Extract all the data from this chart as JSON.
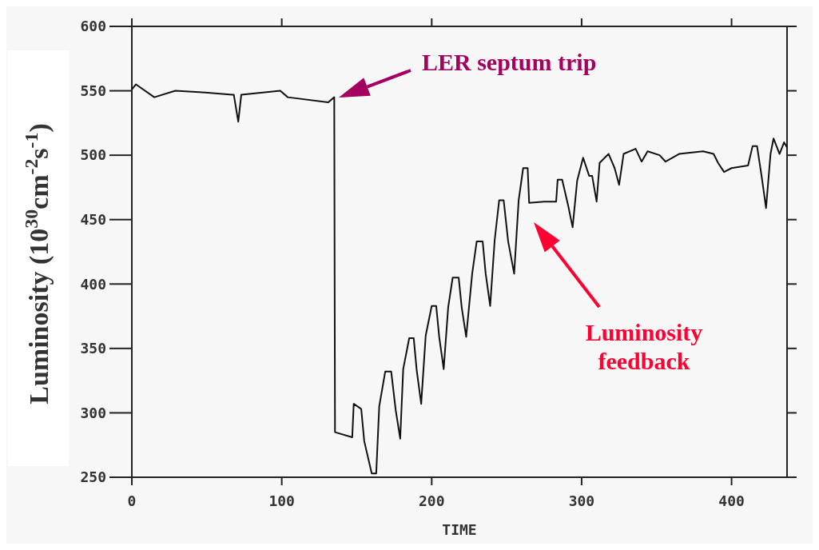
{
  "chart_data": {
    "type": "line",
    "xlabel": "TIME",
    "ylabel": "Luminosity (10$^{30}$cm$^{-2}$s$^{-1}$)",
    "x": [
      0,
      2.7,
      15,
      29,
      45,
      67,
      68,
      71,
      73,
      99,
      104,
      131,
      135,
      135.5,
      147,
      148,
      153,
      155,
      160,
      163,
      165,
      169,
      173,
      176,
      179,
      181,
      185,
      188,
      190,
      193,
      196,
      200,
      203,
      205,
      208,
      211,
      214,
      218,
      220,
      223,
      227,
      230,
      234,
      236,
      239,
      242,
      245,
      248,
      251,
      255,
      258,
      261,
      264,
      265,
      275,
      283,
      284,
      287,
      291,
      294,
      297,
      301,
      305,
      307,
      310,
      312,
      318,
      322,
      325,
      328,
      336,
      340,
      344,
      352,
      356,
      365,
      381,
      388,
      391,
      395,
      400,
      411,
      414,
      417,
      420,
      423,
      426,
      428,
      432,
      435,
      437
    ],
    "series": [
      {
        "color": "#111111",
        "values": [
          551,
          555,
          545,
          550,
          549,
          547,
          547,
          526,
          547,
          550,
          545,
          541,
          545,
          285,
          281,
          307,
          303,
          278,
          253,
          253,
          305,
          332,
          332,
          302,
          280,
          334,
          358,
          358,
          333,
          307,
          360,
          383,
          383,
          359,
          334,
          382,
          405,
          405,
          382,
          359,
          408,
          433,
          433,
          408,
          383,
          434,
          465,
          465,
          433,
          408,
          465,
          490,
          490,
          463,
          464,
          464,
          481,
          481,
          461,
          444,
          480,
          498,
          484,
          484,
          464,
          494,
          501,
          490,
          477,
          501,
          505,
          495,
          503,
          500,
          495,
          501,
          503,
          501,
          494,
          487,
          490,
          492,
          507,
          507,
          484,
          459,
          501,
          513,
          501,
          510,
          506
        ]
      }
    ],
    "xlim": [
      0,
      437
    ],
    "xticks": [
      0,
      100,
      200,
      300,
      400
    ],
    "ylim": [
      250,
      600
    ],
    "yticks": [
      250,
      300,
      350,
      400,
      450,
      500,
      550,
      600
    ],
    "marker": "none",
    "line_style": "solid",
    "grid": false,
    "annotations": [
      "LER septum trip",
      "Luminosity feedback"
    ]
  }
}
